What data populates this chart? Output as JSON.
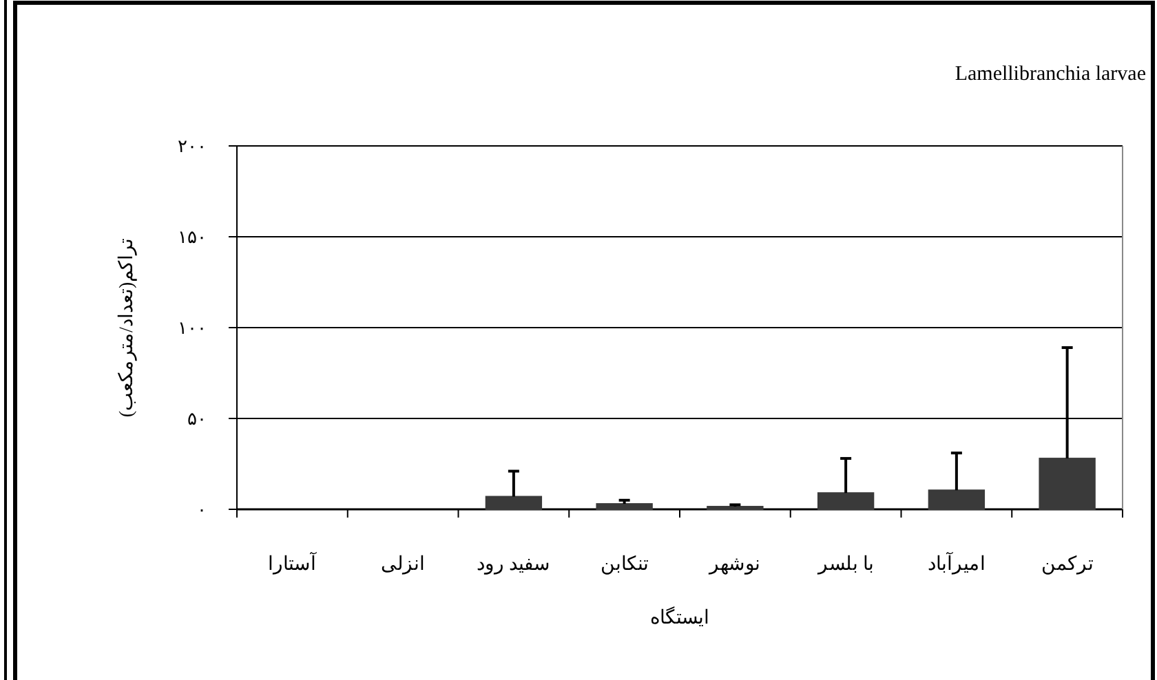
{
  "chart_data": {
    "type": "bar",
    "title": "Lamellibranchia larvae",
    "xlabel": "ایستگاه",
    "ylabel": "تراکم(تعداد/مترمکعب)",
    "categories": [
      "آستارا",
      "انزلی",
      "سفید رود",
      "تنکابن",
      "نوشهر",
      "با بلسر",
      "امیرآباد",
      "ترکمن"
    ],
    "values": [
      0,
      0,
      7,
      3,
      1.5,
      9,
      10.5,
      28
    ],
    "errors": [
      null,
      null,
      [
        7,
        21
      ],
      [
        3,
        5
      ],
      [
        1.5,
        2.5
      ],
      [
        9,
        28
      ],
      [
        10.5,
        31
      ],
      [
        28,
        89
      ]
    ],
    "color": "#3a3a3a",
    "ylim": [
      0,
      200
    ],
    "yticks": [
      {
        "value": 0,
        "label": "۰"
      },
      {
        "value": 50,
        "label": "۵۰"
      },
      {
        "value": 100,
        "label": "۱۰۰"
      },
      {
        "value": 150,
        "label": "۱۵۰"
      },
      {
        "value": 200,
        "label": "۲۰۰"
      }
    ],
    "grid": "y"
  }
}
